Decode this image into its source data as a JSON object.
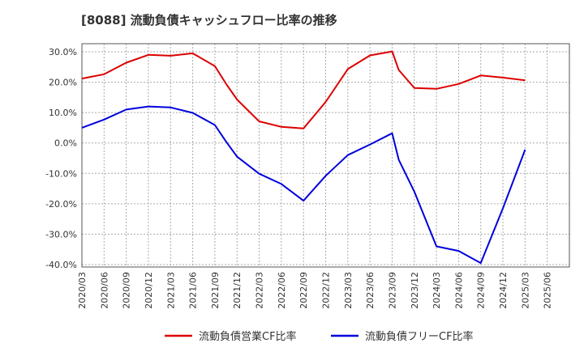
{
  "chart_data": {
    "type": "line",
    "title": "[8088]  流動負債キャッシュフロー比率の推移",
    "xlabel": "",
    "ylabel": "",
    "ylim": [
      -40,
      30
    ],
    "y_ticks": [
      30,
      20,
      10,
      0,
      -10,
      -20,
      -30,
      -40
    ],
    "y_tick_labels": [
      "30.0%",
      "20.0%",
      "10.0%",
      "0.0%",
      "-10.0%",
      "-20.0%",
      "-30.0%",
      "-40.0%"
    ],
    "x_tick_labels": [
      "2020/03",
      "2020/06",
      "2020/09",
      "2020/12",
      "2021/03",
      "2021/06",
      "2021/09",
      "2021/12",
      "2022/03",
      "2022/06",
      "2022/09",
      "2022/12",
      "2023/03",
      "2023/06",
      "2023/09",
      "2023/12",
      "2024/03",
      "2024/06",
      "2024/09",
      "2024/12",
      "2025/03",
      "2025/06"
    ],
    "grid": true,
    "legend_position": "bottom",
    "series": [
      {
        "name": "流動負債営業CF比率",
        "color": "#dd0000",
        "points": [
          [
            0,
            21.2
          ],
          [
            1,
            22.6
          ],
          [
            2,
            26.4
          ],
          [
            3,
            29.0
          ],
          [
            4,
            28.7
          ],
          [
            5,
            29.5
          ],
          [
            6,
            25.3
          ],
          [
            6.5,
            19.5
          ],
          [
            7,
            14.3
          ],
          [
            8,
            7.1
          ],
          [
            9,
            5.3
          ],
          [
            10,
            4.8
          ],
          [
            11,
            13.5
          ],
          [
            12,
            24.3
          ],
          [
            13,
            28.8
          ],
          [
            14,
            30.1
          ],
          [
            14.3,
            24.0
          ],
          [
            15,
            18.1
          ],
          [
            16,
            17.8
          ],
          [
            17,
            19.4
          ],
          [
            18,
            22.2
          ],
          [
            19,
            21.5
          ],
          [
            20,
            20.6
          ]
        ]
      },
      {
        "name": "流動負債フリーCF比率",
        "color": "#0000dd",
        "points": [
          [
            0,
            5.0
          ],
          [
            1,
            7.7
          ],
          [
            2,
            11.0
          ],
          [
            3,
            12.0
          ],
          [
            4,
            11.7
          ],
          [
            5,
            9.9
          ],
          [
            6,
            5.9
          ],
          [
            6.5,
            0.5
          ],
          [
            7,
            -4.5
          ],
          [
            8,
            -10.1
          ],
          [
            9,
            -13.5
          ],
          [
            10,
            -19.0
          ],
          [
            11,
            -10.8
          ],
          [
            12,
            -4.0
          ],
          [
            13,
            -0.5
          ],
          [
            14,
            3.2
          ],
          [
            14.3,
            -5.5
          ],
          [
            15,
            -16.0
          ],
          [
            16,
            -34.0
          ],
          [
            17,
            -35.5
          ],
          [
            18,
            -39.5
          ],
          [
            19,
            -21.5
          ],
          [
            20,
            -2.2
          ]
        ]
      }
    ]
  }
}
